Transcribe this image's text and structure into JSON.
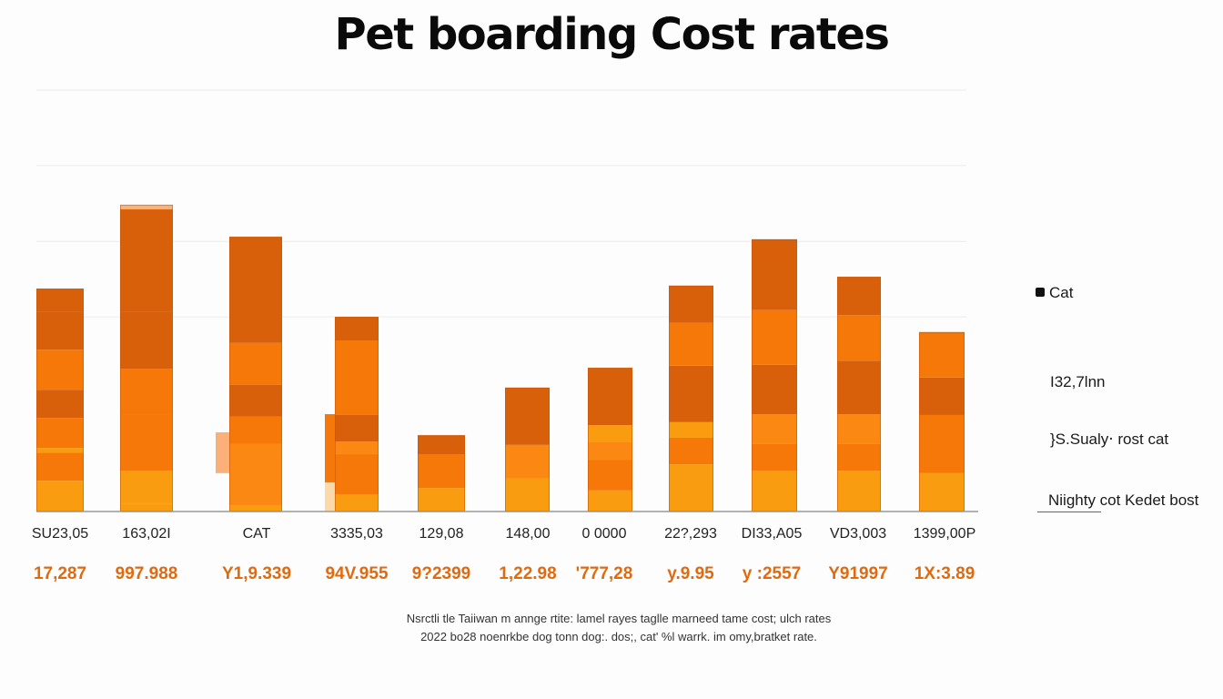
{
  "chart_data": {
    "type": "bar",
    "stacked": true,
    "title": "Pet boarding Cost rates",
    "xlabel": "",
    "ylabel": "",
    "ylim": [
      0,
      100
    ],
    "gridlines": [
      46.2,
      64.1,
      82.1,
      100
    ],
    "grid": true,
    "legend_position": "right",
    "categories": [
      "SU23,05",
      "163,02I",
      "CAT",
      "3335,03",
      "129,08",
      "148,00",
      "0 0000",
      "22?,293",
      "DI33,A05",
      "VD3,003",
      "1399,00P"
    ],
    "value_labels": [
      "17,287",
      "997.988",
      "Y1,9.339",
      "94V.955",
      "9?2399",
      "1,22.98",
      "'777,28",
      "y.9.95",
      "y :2557",
      "Y91997",
      "1X:3.89"
    ],
    "colors": {
      "dark": "#d9600a",
      "mid": "#f57808",
      "bright": "#fb8812",
      "yellow": "#f99c10",
      "cap": "#f8b27a",
      "ghost": "#fbb07a",
      "ghost_light": "#fcd9a8"
    },
    "bars": [
      {
        "total": 52.9,
        "segments": [
          [
            "yellow",
            7.3
          ],
          [
            "mid",
            6.7
          ],
          [
            "yellow",
            1.1
          ],
          [
            "mid",
            7.1
          ],
          [
            "dark",
            6.7
          ],
          [
            "mid",
            9.5
          ],
          [
            "dark",
            9.1
          ],
          [
            "dark",
            5.4
          ]
        ]
      },
      {
        "total": 72.8,
        "segments": [
          [
            "yellow",
            1.9
          ],
          [
            "yellow",
            7.8
          ],
          [
            "mid",
            13.2
          ],
          [
            "mid",
            11.0
          ],
          [
            "dark",
            13.6
          ],
          [
            "dark",
            24.2
          ],
          [
            "cap",
            1.1
          ]
        ]
      },
      {
        "total": 65.2,
        "segments": [
          [
            "yellow",
            1.5
          ],
          [
            "bright",
            14.5
          ],
          [
            "mid",
            6.5
          ],
          [
            "dark",
            7.6
          ],
          [
            "mid",
            9.9
          ],
          [
            "dark",
            25.2
          ]
        ],
        "ghost": {
          "bottom": 9.1,
          "top": 18.8,
          "color": "ghost"
        }
      },
      {
        "total": 46.2,
        "segments": [
          [
            "yellow",
            4.1
          ],
          [
            "mid",
            9.5
          ],
          [
            "bright",
            3.0
          ],
          [
            "dark",
            6.3
          ],
          [
            "mid",
            17.7
          ],
          [
            "dark",
            5.6
          ]
        ],
        "ghost": {
          "bottom": 0,
          "top": 23.1,
          "color": "mid",
          "lower_color": "ghost_light",
          "lower_top": 6.9
        }
      },
      {
        "total": 18.1,
        "segments": [
          [
            "yellow",
            5.6
          ],
          [
            "mid",
            8.0
          ],
          [
            "dark",
            4.5
          ]
        ]
      },
      {
        "total": 29.4,
        "segments": [
          [
            "yellow",
            7.8
          ],
          [
            "bright",
            8.0
          ],
          [
            "dark",
            13.6
          ]
        ]
      },
      {
        "total": 34.1,
        "segments": [
          [
            "yellow",
            5.0
          ],
          [
            "mid",
            7.3
          ],
          [
            "bright",
            4.3
          ],
          [
            "yellow",
            3.9
          ],
          [
            "dark",
            13.6
          ]
        ]
      },
      {
        "total": 53.6,
        "segments": [
          [
            "yellow",
            11.2
          ],
          [
            "mid",
            6.3
          ],
          [
            "yellow",
            3.7
          ],
          [
            "dark",
            13.4
          ],
          [
            "mid",
            10.2
          ],
          [
            "dark",
            8.8
          ]
        ]
      },
      {
        "total": 64.6,
        "segments": [
          [
            "yellow",
            9.7
          ],
          [
            "mid",
            6.3
          ],
          [
            "bright",
            7.1
          ],
          [
            "dark",
            11.7
          ],
          [
            "mid",
            13.0
          ],
          [
            "dark",
            16.8
          ]
        ]
      },
      {
        "total": 55.7,
        "segments": [
          [
            "yellow",
            9.7
          ],
          [
            "mid",
            6.3
          ],
          [
            "bright",
            7.1
          ],
          [
            "dark",
            12.7
          ],
          [
            "mid",
            10.8
          ],
          [
            "dark",
            9.1
          ]
        ]
      },
      {
        "total": 42.5,
        "segments": [
          [
            "yellow",
            9.1
          ],
          [
            "mid",
            13.8
          ],
          [
            "dark",
            8.9
          ],
          [
            "mid",
            10.8
          ]
        ]
      }
    ]
  },
  "legend": {
    "items": [
      {
        "label": "Cat",
        "swatch": true
      },
      {
        "label": "I32,7lnn",
        "swatch": false
      },
      {
        "label": "}S.Sualy‧ rost cat",
        "swatch": false
      },
      {
        "label": "Niighty cot Kedet bost",
        "swatch": false
      }
    ]
  },
  "footnote": {
    "line1": "Nsrctli tle Taiiwan m annge rtite: lamel rayes taglle marneed tame cost; ulch rates",
    "line2": "2022 bo28 noenrkbe dog tonn dog:. dos;, cat' %l warrk. im omy,bratket rate."
  }
}
